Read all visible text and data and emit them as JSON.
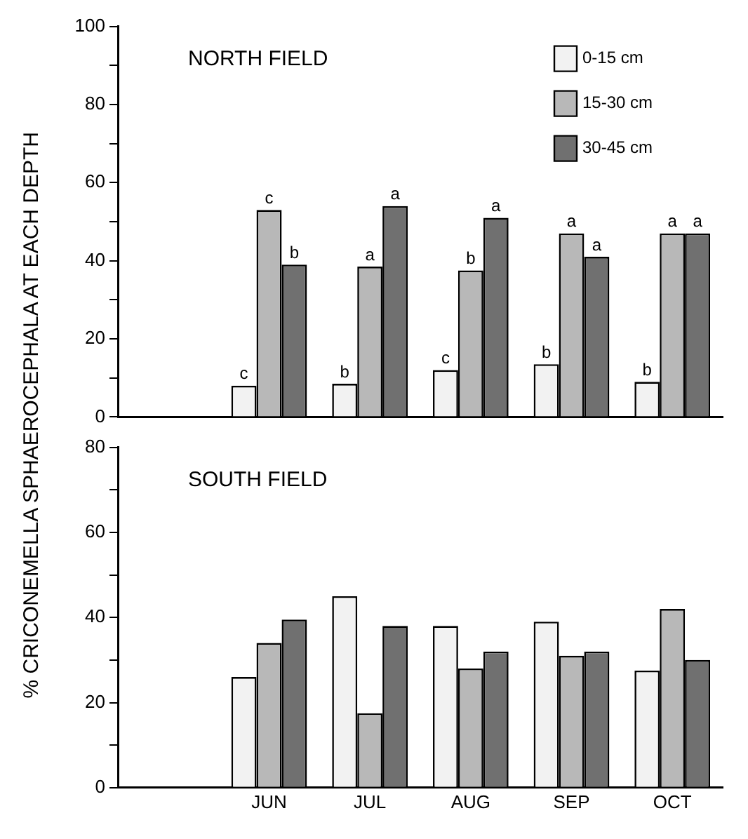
{
  "chart_data": [
    {
      "type": "bar",
      "title": "NORTH FIELD",
      "ylabel": "% CRICONEMELLA SPHAEROCEPHALA AT EACH DEPTH",
      "categories": [
        null,
        null,
        null,
        null,
        null,
        null
      ],
      "ylim": [
        0,
        100
      ],
      "yticks": [
        0,
        {
          "value": 10,
          "label": null
        },
        20,
        {
          "value": 30,
          "label": null
        },
        40,
        {
          "value": 50,
          "label": null
        },
        60,
        {
          "value": 70,
          "label": null
        },
        80,
        {
          "value": 90,
          "label": null
        },
        100
      ],
      "legend": "top right",
      "tick_labels": "y",
      "grid": false,
      "series": [
        {
          "name": "0-15 cm",
          "color": "#f2f2f2",
          "values": [
            null,
            8,
            8.5,
            12,
            13.5,
            9
          ],
          "value_labels": [
            null,
            "c",
            "b",
            "c",
            "b",
            "b"
          ]
        },
        {
          "name": "15-30 cm",
          "color": "#b8b8b8",
          "values": [
            null,
            53,
            38.5,
            37.5,
            47,
            47
          ],
          "value_labels": [
            null,
            "c",
            "a",
            "b",
            "a",
            "a"
          ]
        },
        {
          "name": "30-45 cm",
          "color": "#707070",
          "values": [
            null,
            39,
            54,
            51,
            41,
            47
          ],
          "value_labels": [
            null,
            "b",
            "a",
            "a",
            "a",
            "a"
          ]
        }
      ]
    },
    {
      "type": "bar",
      "title": "SOUTH FIELD",
      "categories": [
        null,
        "JUN",
        "JUL",
        "AUG",
        "SEP",
        "OCT"
      ],
      "ylim": [
        0,
        80
      ],
      "yticks": [
        0,
        {
          "value": 10,
          "label": null
        },
        20,
        {
          "value": 30,
          "label": null
        },
        40,
        {
          "value": 50,
          "label": null
        },
        60,
        {
          "value": 70,
          "label": null
        },
        80
      ],
      "legend": false,
      "grid": false,
      "series": [
        {
          "color": "#f2f2f2",
          "values": [
            null,
            26,
            45,
            38,
            39,
            27.5
          ]
        },
        {
          "color": "#b8b8b8",
          "values": [
            null,
            34,
            17.5,
            28,
            31,
            42
          ]
        },
        {
          "color": "#707070",
          "values": [
            null,
            39.5,
            38,
            32,
            32,
            30
          ]
        }
      ]
    }
  ]
}
